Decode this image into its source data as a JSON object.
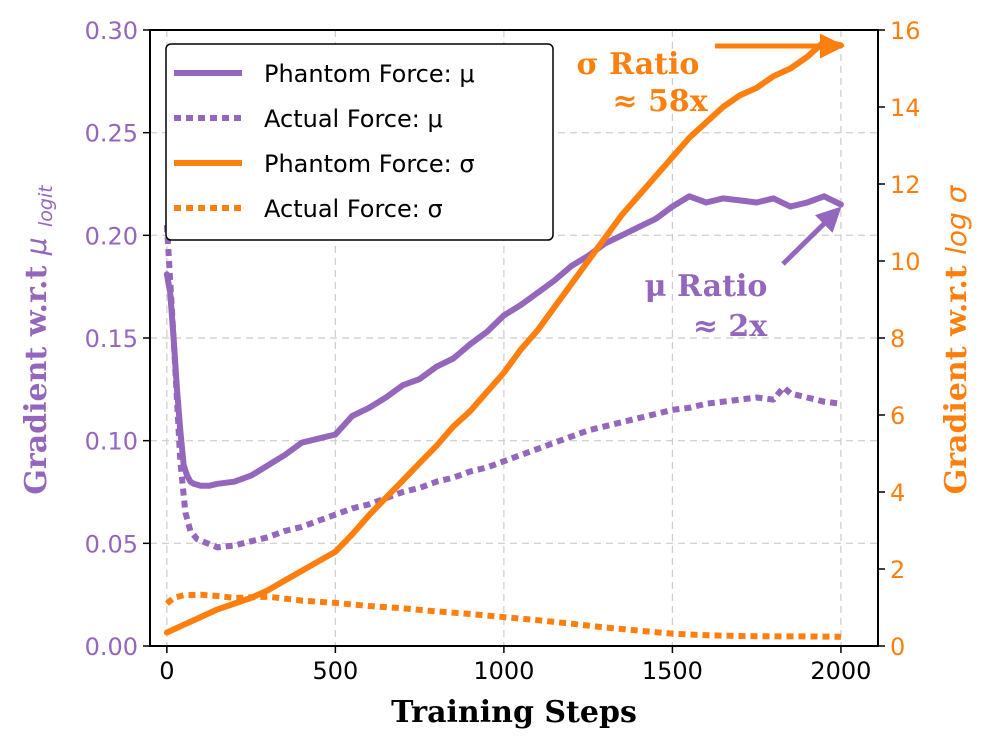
{
  "chart_data": {
    "type": "line",
    "xlabel": "Training Steps",
    "ylabel_left": "Gradient w.r.t",
    "ylabel_left_symbol": "μ",
    "ylabel_left_sub": "logit",
    "ylabel_right": "Gradient w.r.t",
    "ylabel_right_symbol": "log σ",
    "xlim": [
      -50,
      2110
    ],
    "ylim_left": [
      0,
      0.3
    ],
    "ylim_right": [
      0,
      16
    ],
    "grid": true,
    "x_ticks": [
      0,
      500,
      1000,
      1500,
      2000
    ],
    "x_tick_labels": [
      "0",
      "500",
      "1000",
      "1500",
      "2000"
    ],
    "y_left_ticks": [
      0,
      0.05,
      0.1,
      0.15,
      0.2,
      0.25,
      0.3
    ],
    "y_left_tick_labels": [
      "0.00",
      "0.05",
      "0.10",
      "0.15",
      "0.20",
      "0.25",
      "0.30"
    ],
    "y_right_ticks": [
      0,
      2,
      4,
      6,
      8,
      10,
      12,
      14,
      16
    ],
    "y_right_tick_labels": [
      "0",
      "2",
      "4",
      "6",
      "8",
      "10",
      "12",
      "14",
      "16"
    ],
    "colors": {
      "mu": "#9467bd",
      "sigma": "#ff7f0e",
      "axis": "#000000"
    },
    "legend_position": "upper-left",
    "series": [
      {
        "name": "Phantom Force: μ",
        "axis": "left",
        "style": "solid",
        "color": "#9467bd",
        "x": [
          0,
          10,
          20,
          30,
          40,
          50,
          60,
          70,
          80,
          100,
          125,
          150,
          200,
          250,
          300,
          350,
          400,
          450,
          500,
          550,
          600,
          650,
          700,
          750,
          800,
          850,
          900,
          950,
          1000,
          1050,
          1100,
          1150,
          1200,
          1250,
          1300,
          1350,
          1400,
          1450,
          1500,
          1550,
          1600,
          1650,
          1700,
          1750,
          1800,
          1850,
          1900,
          1950,
          2000
        ],
        "values": [
          0.181,
          0.172,
          0.15,
          0.125,
          0.105,
          0.088,
          0.083,
          0.08,
          0.079,
          0.078,
          0.078,
          0.079,
          0.08,
          0.083,
          0.088,
          0.093,
          0.099,
          0.101,
          0.103,
          0.112,
          0.116,
          0.121,
          0.127,
          0.13,
          0.136,
          0.14,
          0.147,
          0.153,
          0.161,
          0.166,
          0.172,
          0.178,
          0.185,
          0.19,
          0.196,
          0.2,
          0.204,
          0.208,
          0.214,
          0.219,
          0.216,
          0.218,
          0.217,
          0.216,
          0.218,
          0.214,
          0.216,
          0.219,
          0.215
        ]
      },
      {
        "name": "Actual Force: μ",
        "axis": "left",
        "style": "dotted",
        "color": "#9467bd",
        "x": [
          0,
          20,
          40,
          55,
          70,
          90,
          120,
          150,
          200,
          250,
          300,
          350,
          400,
          450,
          500,
          550,
          600,
          650,
          700,
          750,
          800,
          850,
          900,
          950,
          1000,
          1050,
          1100,
          1150,
          1200,
          1250,
          1300,
          1350,
          1400,
          1450,
          1500,
          1550,
          1600,
          1650,
          1700,
          1750,
          1800,
          1830,
          1850,
          1900,
          1950,
          2000
        ],
        "values": [
          0.205,
          0.15,
          0.09,
          0.065,
          0.056,
          0.052,
          0.05,
          0.048,
          0.049,
          0.051,
          0.053,
          0.056,
          0.058,
          0.061,
          0.064,
          0.067,
          0.069,
          0.072,
          0.075,
          0.077,
          0.08,
          0.082,
          0.085,
          0.087,
          0.09,
          0.093,
          0.096,
          0.099,
          0.102,
          0.105,
          0.107,
          0.109,
          0.111,
          0.113,
          0.115,
          0.116,
          0.118,
          0.119,
          0.12,
          0.121,
          0.12,
          0.126,
          0.123,
          0.121,
          0.119,
          0.118
        ]
      },
      {
        "name": "Phantom Force: σ",
        "axis": "right",
        "style": "solid",
        "color": "#ff7f0e",
        "x": [
          0,
          50,
          100,
          150,
          200,
          250,
          300,
          350,
          400,
          450,
          500,
          550,
          600,
          650,
          700,
          750,
          800,
          850,
          900,
          950,
          1000,
          1050,
          1100,
          1150,
          1200,
          1250,
          1300,
          1350,
          1400,
          1450,
          1500,
          1550,
          1600,
          1650,
          1700,
          1750,
          1800,
          1850,
          1900,
          1950,
          2000
        ],
        "values": [
          0.35,
          0.55,
          0.75,
          0.95,
          1.1,
          1.25,
          1.45,
          1.7,
          1.95,
          2.2,
          2.45,
          2.9,
          3.4,
          3.85,
          4.3,
          4.75,
          5.2,
          5.7,
          6.1,
          6.6,
          7.1,
          7.7,
          8.2,
          8.8,
          9.4,
          10.0,
          10.6,
          11.2,
          11.7,
          12.2,
          12.7,
          13.2,
          13.6,
          14.0,
          14.3,
          14.5,
          14.8,
          15.0,
          15.3,
          15.7,
          15.6
        ]
      },
      {
        "name": "Actual Force: σ",
        "axis": "right",
        "style": "dotted",
        "color": "#ff7f0e",
        "x": [
          0,
          20,
          50,
          100,
          150,
          200,
          300,
          400,
          500,
          600,
          700,
          800,
          900,
          1000,
          1100,
          1200,
          1300,
          1400,
          1500,
          1600,
          1700,
          1800,
          1900,
          2000
        ],
        "values": [
          1.1,
          1.25,
          1.32,
          1.33,
          1.3,
          1.25,
          1.28,
          1.18,
          1.12,
          1.04,
          0.98,
          0.9,
          0.83,
          0.75,
          0.67,
          0.58,
          0.48,
          0.4,
          0.32,
          0.28,
          0.26,
          0.25,
          0.25,
          0.24
        ]
      }
    ],
    "legend": [
      {
        "label": "Phantom Force: μ",
        "color": "#9467bd",
        "style": "solid"
      },
      {
        "label": "Actual Force: μ",
        "color": "#9467bd",
        "style": "dotted"
      },
      {
        "label": "Phantom Force: σ",
        "color": "#ff7f0e",
        "style": "solid"
      },
      {
        "label": "Actual Force: σ",
        "color": "#ff7f0e",
        "style": "dotted"
      }
    ],
    "annotations": [
      {
        "line1": "σ Ratio",
        "line2": "≈ 58x",
        "color": "#ff7f0e",
        "points_to": {
          "x": 1990,
          "y_right": 15.6
        }
      },
      {
        "line1": "μ Ratio",
        "line2": "≈ 2x",
        "color": "#9467bd",
        "points_to": {
          "x": 1990,
          "y_left": 0.215
        }
      }
    ]
  }
}
